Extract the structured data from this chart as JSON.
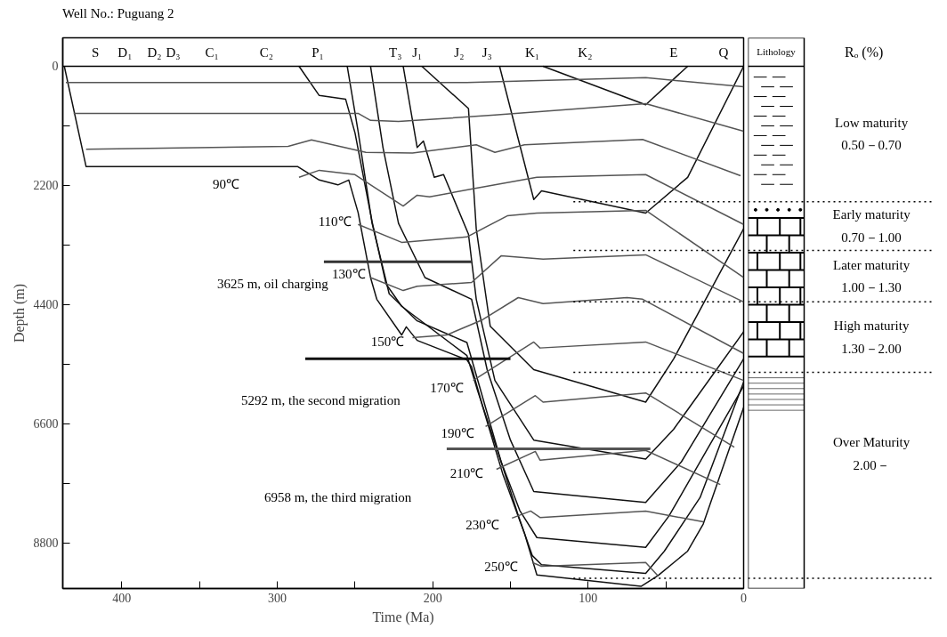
{
  "chart_data": {
    "type": "line",
    "title": "Well No.: Puguang 2",
    "xlabel": "Time (Ma)",
    "ylabel": "Depth (m)",
    "xlim": [
      438,
      0
    ],
    "ylim": [
      9640,
      -525
    ],
    "xticks": [
      400,
      {
        "value": 350,
        "label": null
      },
      300,
      {
        "value": 250,
        "label": null
      },
      200,
      {
        "value": 150,
        "label": null
      },
      100,
      {
        "value": 50,
        "label": null
      },
      0
    ],
    "yticks": [
      0,
      {
        "value": 1100,
        "label": null
      },
      2200,
      {
        "value": 3300,
        "label": null
      },
      4400,
      {
        "value": 5500,
        "label": null
      },
      6600,
      {
        "value": 7700,
        "label": null
      },
      8800
    ],
    "grid": false,
    "marker": "none",
    "line_style": "solid",
    "series": [
      {
        "color": "#111111",
        "x": [
          437,
          423,
          287,
          273,
          261,
          254,
          248,
          240,
          236,
          220,
          217,
          210,
          178,
          175,
          168,
          155,
          141,
          133,
          66,
          55,
          36,
          26,
          0
        ],
        "values": [
          0,
          1850,
          1850,
          2100,
          2190,
          2100,
          2700,
          3900,
          4300,
          4960,
          4810,
          5060,
          5420,
          5550,
          6270,
          7520,
          8620,
          9390,
          9600,
          9400,
          8950,
          8450,
          6300
        ]
      },
      {
        "color": "#111111",
        "x": [
          286,
          273,
          256,
          250,
          239,
          230,
          220,
          178,
          171,
          156,
          145,
          136,
          130,
          63,
          51,
          28,
          0
        ],
        "values": [
          0,
          540,
          610,
          1230,
          2870,
          4020,
          4430,
          5340,
          6000,
          7300,
          8290,
          9030,
          9200,
          9360,
          8950,
          7960,
          5830
        ]
      },
      {
        "color": "#111111",
        "x": [
          255,
          248,
          239,
          228,
          210,
          178,
          170,
          156,
          144,
          133,
          63,
          48,
          0
        ],
        "values": [
          0,
          1200,
          2900,
          4200,
          4700,
          5100,
          5900,
          7300,
          8200,
          8700,
          8880,
          8300,
          5900
        ]
      },
      {
        "color": "#111111",
        "x": [
          240,
          232,
          222,
          205,
          175,
          165,
          150,
          135,
          63,
          40,
          0
        ],
        "values": [
          0,
          1500,
          2900,
          3900,
          4300,
          5600,
          6900,
          7850,
          8050,
          7300,
          5400
        ]
      },
      {
        "color": "#111111",
        "x": [
          219,
          210,
          206,
          199,
          193,
          177,
          172,
          160,
          135,
          63,
          45,
          0
        ],
        "values": [
          0,
          1500,
          1380,
          2050,
          2000,
          3100,
          4300,
          5800,
          6900,
          7250,
          6700,
          4900
        ]
      },
      {
        "color": "#111111",
        "x": [
          207,
          177,
          172,
          163,
          135,
          63,
          45,
          0
        ],
        "values": [
          0,
          780,
          3000,
          4800,
          5600,
          6200,
          5400,
          3000
        ]
      },
      {
        "color": "#111111",
        "x": [
          157,
          135,
          130,
          63,
          36,
          0
        ],
        "values": [
          0,
          2460,
          2300,
          2710,
          2050,
          0
        ]
      },
      {
        "color": "#111111",
        "x": [
          129,
          63,
          36
        ],
        "values": [
          0,
          710,
          0
        ]
      },
      {
        "color": "#555555",
        "x": [
          436,
          250,
          178,
          63,
          0
        ],
        "values": [
          300,
          300,
          300,
          210,
          380
        ]
      },
      {
        "color": "#555555",
        "x": [
          431,
          283,
          248,
          240,
          222,
          160,
          63,
          0
        ],
        "values": [
          870,
          870,
          870,
          1000,
          1020,
          900,
          690,
          1200
        ]
      },
      {
        "color": "#555555",
        "x": [
          423,
          293,
          278,
          243,
          213,
          172,
          160,
          141,
          65,
          2
        ],
        "values": [
          1530,
          1480,
          1360,
          1590,
          1600,
          1450,
          1590,
          1450,
          1350,
          2020
        ]
      },
      {
        "color": "#555555",
        "x": [
          286,
          273,
          250,
          219,
          210,
          202,
          172,
          133,
          63,
          0
        ],
        "values": [
          2050,
          1920,
          2000,
          2580,
          2380,
          2410,
          2250,
          2050,
          2000,
          2920
        ]
      },
      {
        "color": "#555555",
        "x": [
          248,
          220,
          178,
          152,
          133,
          63,
          0
        ],
        "values": [
          2920,
          3250,
          3150,
          2760,
          2710,
          2660,
          3900
        ]
      },
      {
        "color": "#555555",
        "x": [
          240,
          219,
          210,
          175,
          156,
          129,
          63,
          0
        ],
        "values": [
          3900,
          4140,
          4060,
          3990,
          3500,
          3560,
          3480,
          4350
        ]
      },
      {
        "color": "#555555",
        "x": [
          213,
          191,
          168,
          145,
          129,
          75,
          65,
          0
        ],
        "values": [
          5010,
          4960,
          4680,
          4270,
          4380,
          4270,
          4300,
          5300
        ]
      },
      {
        "color": "#555555",
        "x": [
          174,
          135,
          131,
          63,
          0
        ],
        "values": [
          5800,
          5090,
          5200,
          5090,
          5800
        ]
      },
      {
        "color": "#555555",
        "x": [
          166,
          134,
          129,
          63,
          6
        ],
        "values": [
          6650,
          6080,
          6200,
          6030,
          7030
        ]
      },
      {
        "color": "#555555",
        "x": [
          159,
          134,
          131,
          63,
          15
        ],
        "values": [
          7440,
          7110,
          7270,
          7090,
          7720
        ]
      },
      {
        "color": "#555555",
        "x": [
          149,
          137,
          131,
          63,
          26
        ],
        "values": [
          8340,
          8210,
          8330,
          8210,
          8410
        ]
      },
      {
        "color": "#555555",
        "x": [
          136,
          130,
          63,
          55
        ],
        "values": [
          9160,
          9230,
          9160,
          9410
        ]
      },
      {
        "color": "#333333",
        "x": [
          270,
          175
        ],
        "values": [
          3610,
          3610
        ]
      },
      {
        "color": "#111111",
        "x": [
          282,
          150
        ],
        "values": [
          5400,
          5400
        ]
      },
      {
        "color": "#555555",
        "x": [
          191,
          60
        ],
        "values": [
          7060,
          7060
        ]
      }
    ],
    "ref_lines": [
      {
        "axis": "y",
        "value": 0,
        "label": null,
        "color": "#000000",
        "line_style": "solid"
      },
      {
        "axis": "y",
        "value": 2500,
        "label": null,
        "color": "#000000",
        "line_style": "dotted"
      },
      {
        "axis": "y",
        "value": 3400,
        "label": null,
        "color": "#000000",
        "line_style": "dotted"
      },
      {
        "axis": "y",
        "value": 4350,
        "label": null,
        "color": "#000000",
        "line_style": "dotted"
      },
      {
        "axis": "y",
        "value": 5650,
        "label": null,
        "color": "#000000",
        "line_style": "dotted"
      },
      {
        "axis": "y",
        "value": 9450,
        "label": null,
        "color": "#000000",
        "line_style": "dotted"
      }
    ],
    "annotations": [
      "S",
      "D₁",
      "D₂",
      "D₃",
      "C₁",
      "C₂",
      "P₁",
      "T₃",
      "J₁",
      "J₂",
      "J₃",
      "K₁",
      "K₂",
      "E",
      "Q",
      "90℃",
      "110℃",
      "130℃",
      "150℃",
      "170℃",
      "190℃",
      "210℃",
      "230℃",
      "250℃",
      "3625 m, oil charging",
      "5292 m, the second migration",
      "6958 m, the third migration",
      "Lithology",
      "Rₒ (%)",
      "Low maturity\n0.50－0.70",
      "Early maturity\n0.70－1.00",
      "Later maturity\n1.00－1.30",
      "High maturity\n1.30－2.00",
      "Over Maturity\n2.00－"
    ]
  }
}
